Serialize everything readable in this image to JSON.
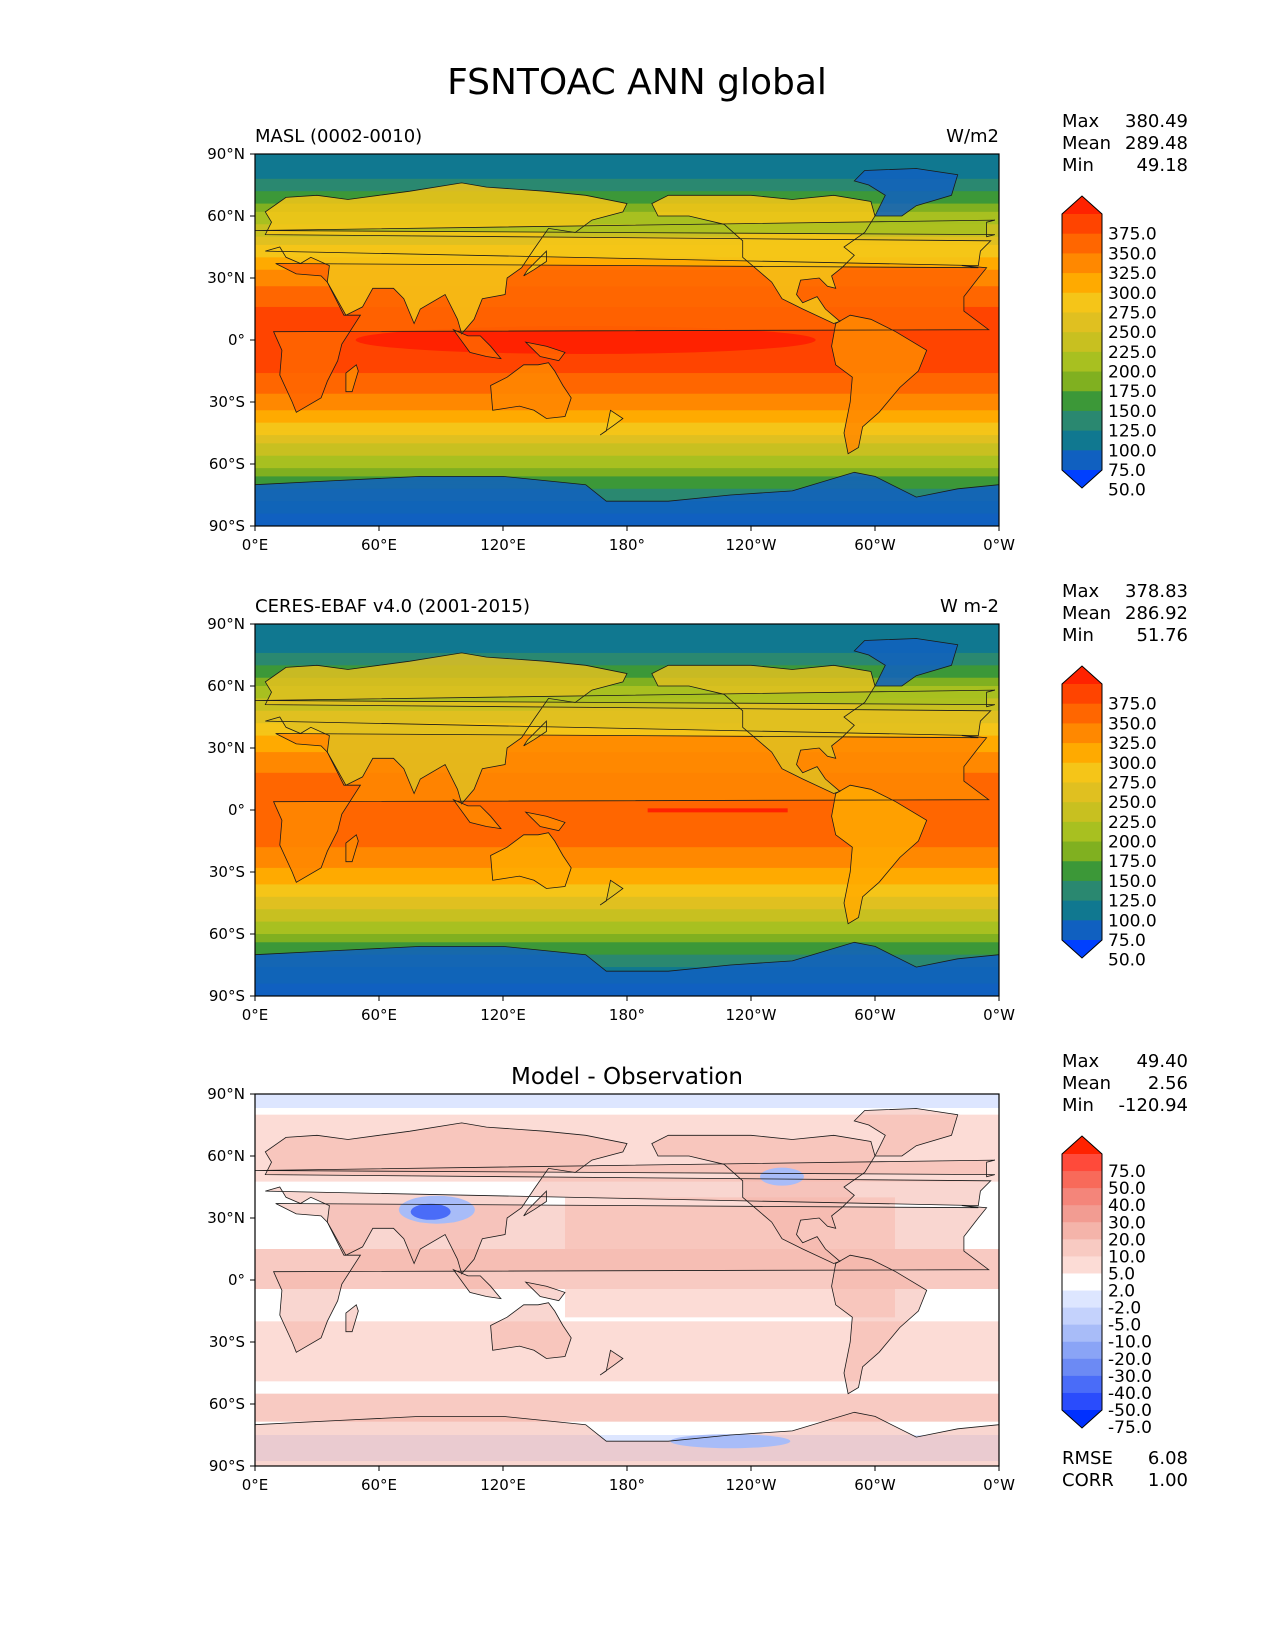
{
  "figure": {
    "title": "FSNTOAC ANN global"
  },
  "chart_data": [
    {
      "type": "heatmap",
      "panel": "model",
      "title": "MASL (0002-0010)",
      "units": "W/m2",
      "stats": {
        "max_label": "Max",
        "max": "380.49",
        "mean_label": "Mean",
        "mean": "289.48",
        "min_label": "Min",
        "min": "49.18"
      },
      "lat_ticks": [
        "90°N",
        "60°N",
        "30°N",
        "0°",
        "30°S",
        "60°S",
        "90°S"
      ],
      "lon_ticks": [
        "0°E",
        "60°E",
        "120°E",
        "180°",
        "120°W",
        "60°W",
        "0°W"
      ],
      "colorbar": {
        "levels": [
          "375.0",
          "350.0",
          "325.0",
          "300.0",
          "275.0",
          "250.0",
          "225.0",
          "200.0",
          "175.0",
          "150.0",
          "125.0",
          "100.0",
          "75.0",
          "50.0"
        ],
        "colors": [
          "#ff2200",
          "#ff4400",
          "#ff6600",
          "#ff8800",
          "#ffaa00",
          "#f5c518",
          "#e0c020",
          "#c8c020",
          "#a8c020",
          "#80b020",
          "#3c9838",
          "#2a8870",
          "#107890",
          "#1060c0",
          "#0040ff"
        ]
      }
    },
    {
      "type": "heatmap",
      "panel": "observation",
      "title": "CERES-EBAF v4.0 (2001-2015)",
      "units": "W m-2",
      "stats": {
        "max_label": "Max",
        "max": "378.83",
        "mean_label": "Mean",
        "mean": "286.92",
        "min_label": "Min",
        "min": "51.76"
      },
      "lat_ticks": [
        "90°N",
        "60°N",
        "30°N",
        "0°",
        "30°S",
        "60°S",
        "90°S"
      ],
      "lon_ticks": [
        "0°E",
        "60°E",
        "120°E",
        "180°",
        "120°W",
        "60°W",
        "0°W"
      ],
      "colorbar": {
        "levels": [
          "375.0",
          "350.0",
          "325.0",
          "300.0",
          "275.0",
          "250.0",
          "225.0",
          "200.0",
          "175.0",
          "150.0",
          "125.0",
          "100.0",
          "75.0",
          "50.0"
        ],
        "colors": [
          "#ff2200",
          "#ff4400",
          "#ff6600",
          "#ff8800",
          "#ffaa00",
          "#f5c518",
          "#e0c020",
          "#c8c020",
          "#a8c020",
          "#80b020",
          "#3c9838",
          "#2a8870",
          "#107890",
          "#1060c0",
          "#0040ff"
        ]
      }
    },
    {
      "type": "heatmap",
      "panel": "difference",
      "title": "Model - Observation",
      "stats": {
        "max_label": "Max",
        "max": "49.40",
        "mean_label": "Mean",
        "mean": "2.56",
        "min_label": "Min",
        "min": "-120.94"
      },
      "metrics": {
        "rmse_label": "RMSE",
        "rmse": "6.08",
        "corr_label": "CORR",
        "corr": "1.00"
      },
      "lat_ticks": [
        "90°N",
        "60°N",
        "30°N",
        "0°",
        "30°S",
        "60°S",
        "90°S"
      ],
      "lon_ticks": [
        "0°E",
        "60°E",
        "120°E",
        "180°",
        "120°W",
        "60°W",
        "0°W"
      ],
      "colorbar": {
        "levels": [
          "75.0",
          "50.0",
          "40.0",
          "30.0",
          "20.0",
          "10.0",
          "5.0",
          "2.0",
          "-2.0",
          "-5.0",
          "-10.0",
          "-20.0",
          "-30.0",
          "-40.0",
          "-50.0",
          "-75.0"
        ],
        "colors": [
          "#ff2200",
          "#ff4a3a",
          "#f86a5a",
          "#f4857a",
          "#f29c92",
          "#f4b4aa",
          "#f8cac2",
          "#fcdcd6",
          "#ffffff",
          "#dde6ff",
          "#c4d2fc",
          "#a8bcf8",
          "#8aa4f6",
          "#6c8af4",
          "#4a6cf8",
          "#2a4cfc",
          "#0030ff"
        ]
      }
    }
  ]
}
